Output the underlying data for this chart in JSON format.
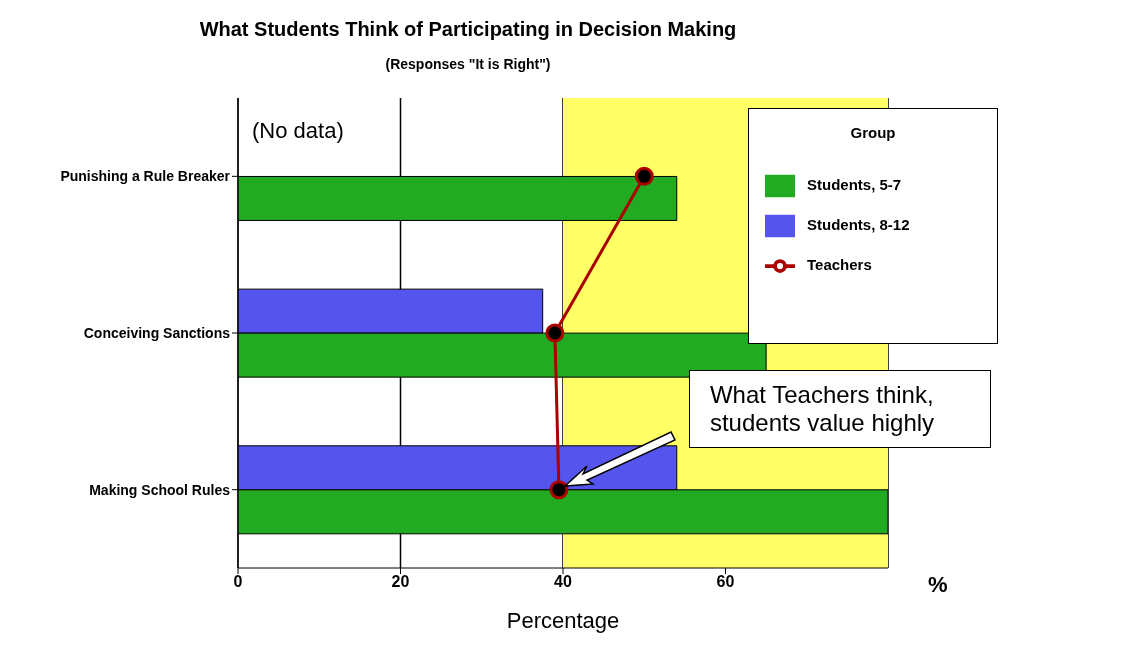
{
  "chart_data": {
    "type": "bar",
    "orientation": "horizontal",
    "title": "What Students Think of Participating in Decision Making",
    "subtitle": "(Responses \"It is Right\")",
    "xlabel": "Percentage",
    "legend_title": "Group",
    "categories": [
      "Punishing a Rule Breaker",
      "Conceiving Sanctions",
      "Making School Rules"
    ],
    "series": [
      {
        "name": "Students, 5-7",
        "color": "#22aa22",
        "values": [
          54,
          65,
          80
        ]
      },
      {
        "name": "Students, 8-12",
        "color": "#5555ee",
        "values": [
          null,
          37.5,
          54
        ]
      },
      {
        "name": "Teachers",
        "type": "line",
        "color": "#aa0000",
        "values": [
          50,
          39,
          39.5
        ]
      }
    ],
    "xlim": [
      0,
      80
    ],
    "xticks": [
      0,
      20,
      40,
      60
    ],
    "grid": "x",
    "legend": "right",
    "marker": "circle",
    "line_style": "solid",
    "bands": [
      {
        "axis": "x",
        "from": 40,
        "to": 80,
        "color": "#ffff66"
      }
    ],
    "annotations": [
      {
        "text": "(No data)",
        "x": 0,
        "y": "Punishing a Rule Breaker"
      },
      "What Teachers think, students value highly",
      "%"
    ]
  }
}
